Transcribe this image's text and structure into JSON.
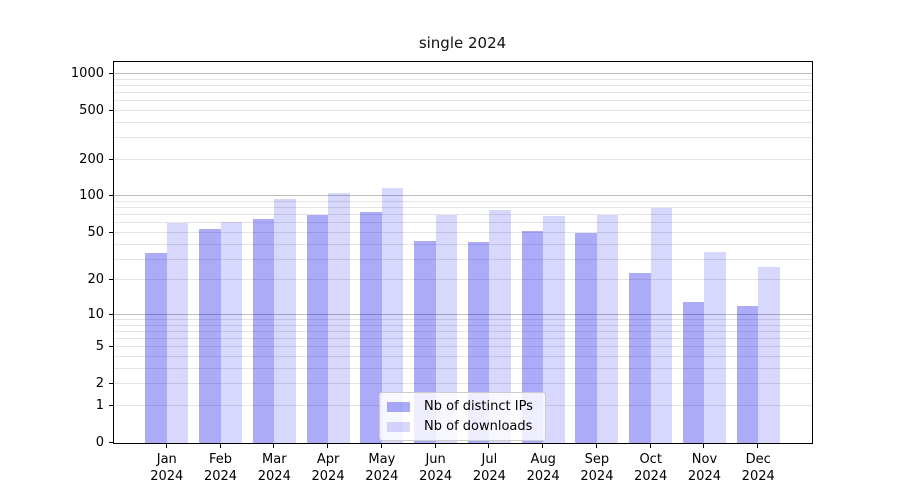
{
  "chart_data": {
    "type": "bar",
    "title": "single 2024",
    "categories": [
      "Jan",
      "Feb",
      "Mar",
      "Apr",
      "May",
      "Jun",
      "Jul",
      "Aug",
      "Sep",
      "Oct",
      "Nov",
      "Dec"
    ],
    "x_tick_year": "2024",
    "series": [
      {
        "key": "ips",
        "name": "Nb of distinct IPs",
        "color": "rgba(13,13,236,0.35)",
        "hex_on_white": "#aaaaf8",
        "values": [
          34,
          54,
          65,
          70,
          75,
          43,
          42,
          52,
          50,
          23,
          13,
          12
        ]
      },
      {
        "key": "downloads",
        "name": "Nb of downloads",
        "color": "rgba(13,13,236,0.16)",
        "hex_on_white": "#d8d8fc",
        "values": [
          61,
          62,
          95,
          106,
          118,
          70,
          78,
          69,
          70,
          80,
          35,
          26
        ]
      }
    ],
    "yscale": "log1p",
    "y_tick_values": [
      0,
      1,
      2,
      5,
      10,
      20,
      50,
      100,
      200,
      500,
      1000
    ],
    "y_tick_labels": [
      "0",
      "1",
      "2",
      "5",
      "10",
      "20",
      "50",
      "100",
      "200",
      "500",
      "1000"
    ],
    "grid": "horizontal",
    "legend_position": "lower center inside plot"
  },
  "colors": {
    "background": "#ffffff",
    "grid_minor": "#e4e4e4",
    "grid_major": "#bdbdbd",
    "axis": "#000000",
    "legend_border": "#cccccc"
  }
}
